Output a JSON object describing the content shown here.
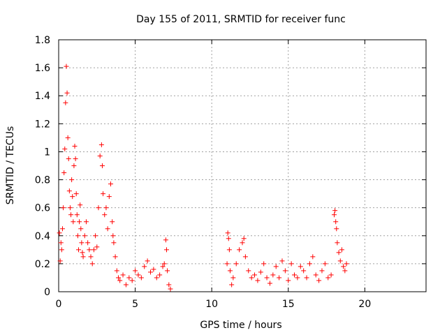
{
  "chart_data": {
    "type": "scatter",
    "title": "Day 155 of 2011, SRMTID for receiver func",
    "xlabel": "GPS time / hours",
    "ylabel": "SRMTID / TECUs",
    "xlim": [
      0,
      24
    ],
    "ylim": [
      0,
      1.8
    ],
    "x_ticks": [
      0,
      5,
      10,
      15,
      20
    ],
    "y_ticks": [
      0,
      0.2,
      0.4,
      0.6,
      0.8,
      1,
      1.2,
      1.4,
      1.6,
      1.8
    ],
    "x_tick_labels": [
      "0",
      "5",
      "10",
      "15",
      "20"
    ],
    "y_tick_labels": [
      "0",
      "0.2",
      "0.4",
      "0.6",
      "0.8",
      "1",
      "1.2",
      "1.4",
      "1.6",
      "1.8"
    ],
    "grid": true,
    "marker": "+",
    "series": [
      {
        "name": "SRMTID",
        "color": "#ff0000",
        "points": [
          [
            0.05,
            0.42
          ],
          [
            0.1,
            0.22
          ],
          [
            0.15,
            0.35
          ],
          [
            0.2,
            0.3
          ],
          [
            0.25,
            0.45
          ],
          [
            0.3,
            0.6
          ],
          [
            0.35,
            0.85
          ],
          [
            0.4,
            1.02
          ],
          [
            0.45,
            1.35
          ],
          [
            0.5,
            1.61
          ],
          [
            0.55,
            1.42
          ],
          [
            0.6,
            1.1
          ],
          [
            0.65,
            0.95
          ],
          [
            0.7,
            0.72
          ],
          [
            0.75,
            0.6
          ],
          [
            0.8,
            0.55
          ],
          [
            0.85,
            0.8
          ],
          [
            0.9,
            0.68
          ],
          [
            0.95,
            0.5
          ],
          [
            1.0,
            0.9
          ],
          [
            1.05,
            1.04
          ],
          [
            1.1,
            0.95
          ],
          [
            1.15,
            0.7
          ],
          [
            1.2,
            0.55
          ],
          [
            1.25,
            0.4
          ],
          [
            1.3,
            0.3
          ],
          [
            1.35,
            0.5
          ],
          [
            1.4,
            0.62
          ],
          [
            1.45,
            0.45
          ],
          [
            1.5,
            0.35
          ],
          [
            1.55,
            0.28
          ],
          [
            1.6,
            0.25
          ],
          [
            1.7,
            0.4
          ],
          [
            1.8,
            0.5
          ],
          [
            1.9,
            0.35
          ],
          [
            2.0,
            0.3
          ],
          [
            2.1,
            0.25
          ],
          [
            2.2,
            0.2
          ],
          [
            2.3,
            0.3
          ],
          [
            2.4,
            0.4
          ],
          [
            2.5,
            0.32
          ],
          [
            2.6,
            0.6
          ],
          [
            2.7,
            0.97
          ],
          [
            2.8,
            1.05
          ],
          [
            2.85,
            0.9
          ],
          [
            2.9,
            0.7
          ],
          [
            3.0,
            0.55
          ],
          [
            3.1,
            0.6
          ],
          [
            3.2,
            0.45
          ],
          [
            3.3,
            0.68
          ],
          [
            3.4,
            0.77
          ],
          [
            3.5,
            0.5
          ],
          [
            3.55,
            0.4
          ],
          [
            3.6,
            0.35
          ],
          [
            3.7,
            0.25
          ],
          [
            3.8,
            0.15
          ],
          [
            3.9,
            0.1
          ],
          [
            4.0,
            0.08
          ],
          [
            4.2,
            0.12
          ],
          [
            4.4,
            0.05
          ],
          [
            4.6,
            0.1
          ],
          [
            4.8,
            0.08
          ],
          [
            5.0,
            0.15
          ],
          [
            5.2,
            0.12
          ],
          [
            5.4,
            0.1
          ],
          [
            5.6,
            0.18
          ],
          [
            5.8,
            0.22
          ],
          [
            6.0,
            0.14
          ],
          [
            6.2,
            0.16
          ],
          [
            6.4,
            0.1
          ],
          [
            6.6,
            0.12
          ],
          [
            6.8,
            0.18
          ],
          [
            6.9,
            0.2
          ],
          [
            7.0,
            0.37
          ],
          [
            7.05,
            0.3
          ],
          [
            7.1,
            0.15
          ],
          [
            7.2,
            0.05
          ],
          [
            7.3,
            0.02
          ],
          [
            11.0,
            0.2
          ],
          [
            11.05,
            0.42
          ],
          [
            11.1,
            0.38
          ],
          [
            11.15,
            0.3
          ],
          [
            11.2,
            0.15
          ],
          [
            11.3,
            0.05
          ],
          [
            11.4,
            0.1
          ],
          [
            11.6,
            0.2
          ],
          [
            11.8,
            0.3
          ],
          [
            12.0,
            0.35
          ],
          [
            12.1,
            0.38
          ],
          [
            12.2,
            0.25
          ],
          [
            12.4,
            0.15
          ],
          [
            12.6,
            0.1
          ],
          [
            12.8,
            0.12
          ],
          [
            13.0,
            0.08
          ],
          [
            13.2,
            0.14
          ],
          [
            13.4,
            0.2
          ],
          [
            13.6,
            0.1
          ],
          [
            13.8,
            0.06
          ],
          [
            14.0,
            0.12
          ],
          [
            14.2,
            0.18
          ],
          [
            14.4,
            0.1
          ],
          [
            14.6,
            0.22
          ],
          [
            14.8,
            0.15
          ],
          [
            15.0,
            0.08
          ],
          [
            15.2,
            0.2
          ],
          [
            15.4,
            0.12
          ],
          [
            15.6,
            0.1
          ],
          [
            15.8,
            0.18
          ],
          [
            16.0,
            0.15
          ],
          [
            16.2,
            0.1
          ],
          [
            16.4,
            0.2
          ],
          [
            16.6,
            0.25
          ],
          [
            16.8,
            0.12
          ],
          [
            17.0,
            0.08
          ],
          [
            17.2,
            0.15
          ],
          [
            17.4,
            0.2
          ],
          [
            17.6,
            0.1
          ],
          [
            17.8,
            0.12
          ],
          [
            18.0,
            0.55
          ],
          [
            18.05,
            0.58
          ],
          [
            18.1,
            0.5
          ],
          [
            18.15,
            0.45
          ],
          [
            18.2,
            0.35
          ],
          [
            18.3,
            0.28
          ],
          [
            18.4,
            0.22
          ],
          [
            18.5,
            0.3
          ],
          [
            18.6,
            0.18
          ],
          [
            18.7,
            0.15
          ],
          [
            18.8,
            0.2
          ]
        ]
      }
    ]
  }
}
